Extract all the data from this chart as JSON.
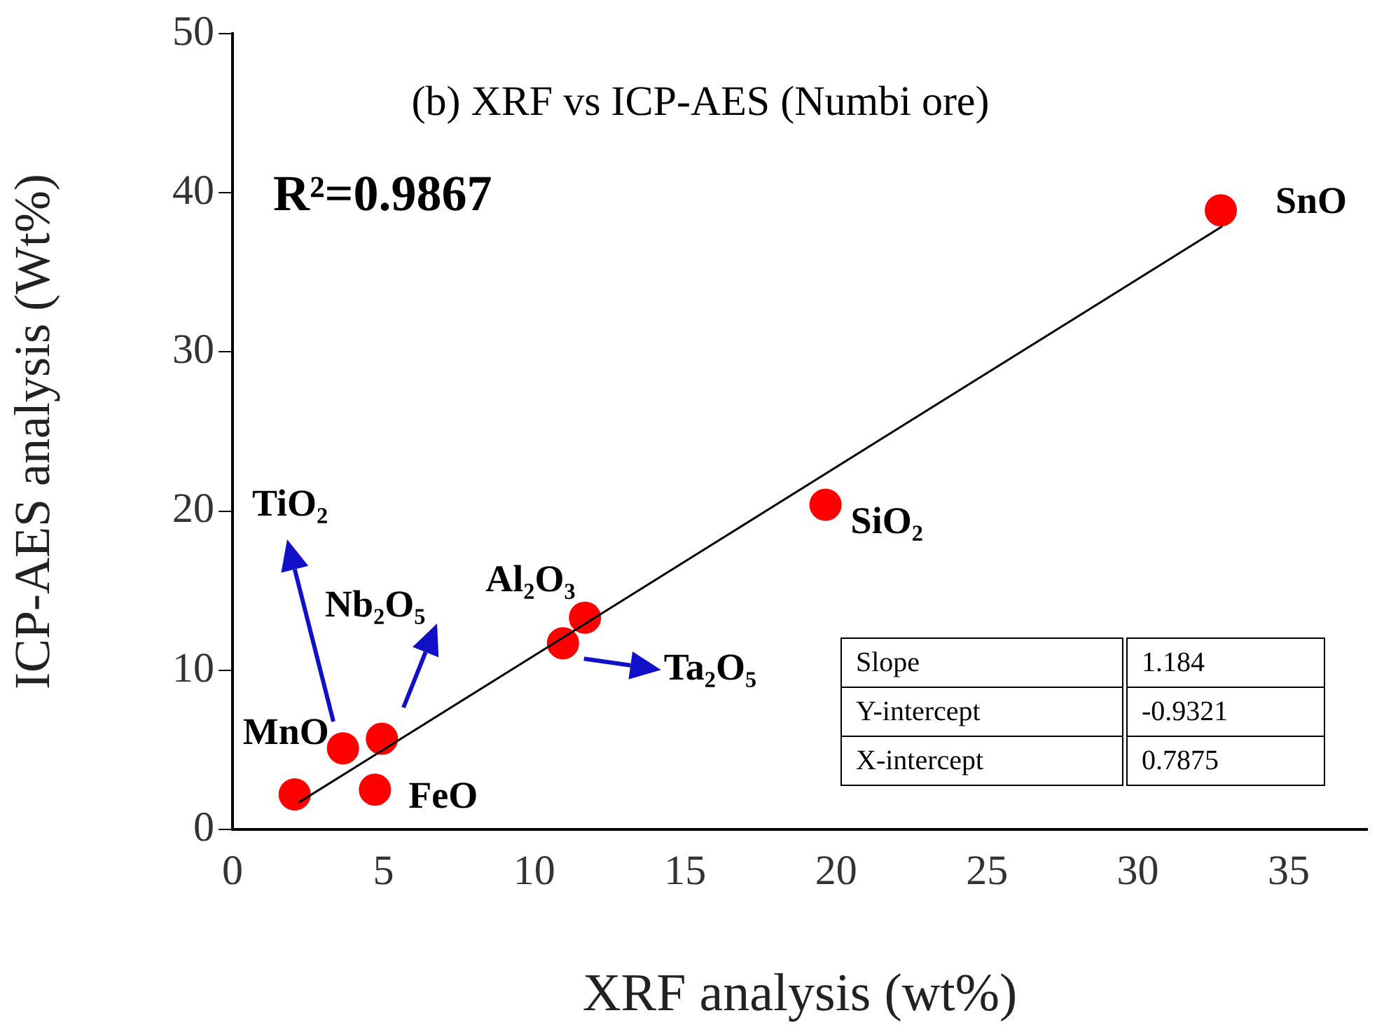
{
  "chart_data": {
    "type": "scatter",
    "title": "(b) XRF vs ICP-AES (Numbi ore)",
    "xlabel": "XRF analysis (wt%)",
    "ylabel": "ICP-AES analysis (Wt%)",
    "xlim": [
      0,
      37.6
    ],
    "xticks": [
      0,
      5,
      10,
      15,
      20,
      25,
      30,
      35
    ],
    "ylim": [
      0,
      50
    ],
    "yticks": [
      0,
      10,
      20,
      30,
      40,
      50
    ],
    "grid": false,
    "legend": false,
    "series": [
      {
        "color": "#ff0000",
        "marker": "circle",
        "x": [
          2.06,
          3.66,
          4.95,
          4.72,
          10.95,
          11.68,
          19.65,
          32.75
        ],
        "values": [
          2.2,
          5.1,
          5.7,
          2.5,
          11.7,
          13.3,
          20.4,
          38.9
        ]
      },
      {
        "type": "line",
        "color": "#000000",
        "x": [
          2.2,
          32.8
        ],
        "values": [
          1.7,
          37.9
        ]
      }
    ],
    "annotations": [
      "R²=0.9867",
      "TiO₂",
      "Nb₂O₅",
      "Slope",
      "1.184",
      "Y-intercept",
      "-0.9321",
      "X-intercept",
      "0.7875",
      {
        "text": "MnO",
        "x": 3.66,
        "y": 5.1
      },
      {
        "text": "FeO",
        "x": 4.72,
        "y": 2.5
      },
      {
        "text": "Ta₂O₅",
        "x": 10.95,
        "y": 11.7
      },
      {
        "text": "Al₂O₃",
        "x": 11.68,
        "y": 13.3
      },
      {
        "text": "SiO₂",
        "x": 19.65,
        "y": 20.4
      },
      {
        "text": "SnO",
        "x": 32.75,
        "y": 38.9
      }
    ]
  }
}
